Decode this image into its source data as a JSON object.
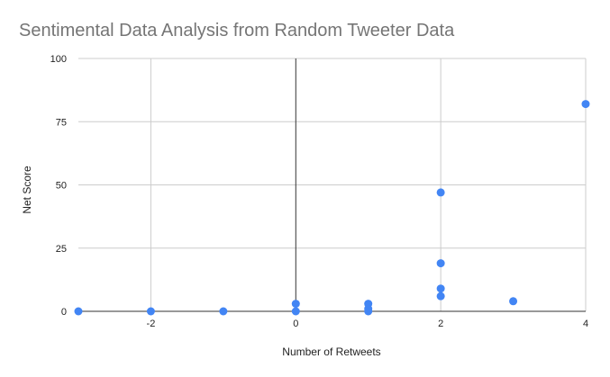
{
  "chart_data": {
    "type": "scatter",
    "title": "Sentimental Data Analysis from Random Tweeter Data",
    "xlabel": "Number of Retweets",
    "ylabel": "Net Score",
    "xlim": [
      -3,
      4
    ],
    "ylim": [
      0,
      100
    ],
    "x_ticks": [
      -2,
      0,
      2,
      4
    ],
    "y_ticks": [
      0,
      25,
      50,
      75,
      100
    ],
    "grid": true,
    "legend": "none",
    "colors": {
      "point": "#4285f4",
      "grid": "#cccccc",
      "zero_axis": "#333333",
      "title": "#757575"
    },
    "points": [
      {
        "x": -3,
        "y": 0
      },
      {
        "x": -2,
        "y": 0
      },
      {
        "x": -1,
        "y": 0
      },
      {
        "x": 0,
        "y": 3
      },
      {
        "x": 0,
        "y": 0
      },
      {
        "x": 1,
        "y": 3
      },
      {
        "x": 1,
        "y": 1
      },
      {
        "x": 1,
        "y": 0
      },
      {
        "x": 2,
        "y": 47
      },
      {
        "x": 2,
        "y": 19
      },
      {
        "x": 2,
        "y": 9
      },
      {
        "x": 2,
        "y": 6
      },
      {
        "x": 3,
        "y": 4
      },
      {
        "x": 4,
        "y": 82
      }
    ]
  }
}
